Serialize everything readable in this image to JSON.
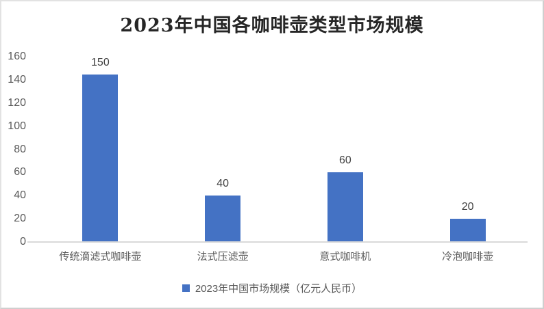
{
  "window": {
    "background": "#ffffff",
    "border_color": "#dddddd"
  },
  "chart_data": {
    "type": "bar",
    "title": "2023年中国各咖啡壶类型市场规模",
    "categories": [
      "传统滴滤式咖啡壶",
      "法式压滤壶",
      "意式咖啡机",
      "冷泡咖啡壶"
    ],
    "values": [
      150,
      40,
      60,
      20
    ],
    "series_name": "2023年中国市场规模（亿元人民币）",
    "xlabel": "",
    "ylabel": "",
    "ylim": [
      0,
      160
    ],
    "yticks": [
      0,
      20,
      40,
      60,
      80,
      100,
      120,
      140,
      160
    ],
    "grid": false,
    "data_labels": true,
    "legend_position": "bottom",
    "bar_color": "#4472C4",
    "axis_line_color": "#d9d9d9",
    "title_color": "#262626",
    "tick_label_color": "#595959",
    "data_label_color": "#404040"
  },
  "legend": {
    "label": "2023年中国市场规模（亿元人民币）",
    "marker_color": "#4472C4"
  }
}
